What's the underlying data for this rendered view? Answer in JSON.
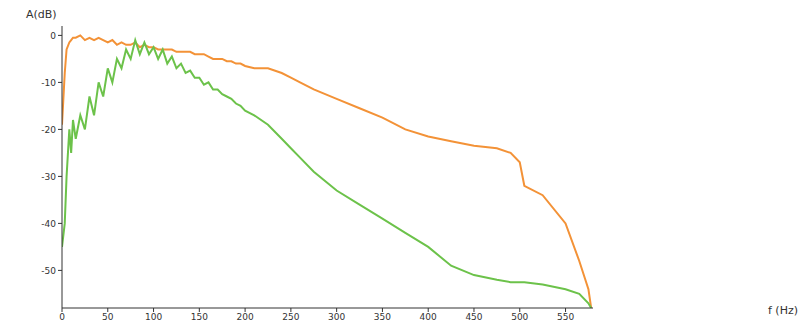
{
  "chart_data": {
    "type": "line",
    "x_label": "f (Hz)",
    "y_label": "A(dB)",
    "x": [
      0,
      3,
      5,
      8,
      10,
      12,
      15,
      20,
      25,
      30,
      35,
      40,
      45,
      50,
      55,
      60,
      65,
      70,
      75,
      80,
      85,
      90,
      95,
      100,
      105,
      110,
      115,
      120,
      125,
      130,
      135,
      140,
      145,
      150,
      155,
      160,
      165,
      170,
      175,
      180,
      185,
      190,
      195,
      200,
      210,
      225,
      240,
      250,
      260,
      275,
      300,
      325,
      350,
      375,
      400,
      425,
      450,
      475,
      490,
      500,
      505,
      525,
      550,
      565,
      575,
      578
    ],
    "series": [
      {
        "color": "#f39237",
        "values": [
          -19,
          -8,
          -3,
          -1.5,
          -1,
          -0.5,
          -0.5,
          0,
          -1,
          -0.5,
          -1,
          -0.5,
          -1,
          -1.5,
          -1,
          -2,
          -1.5,
          -2,
          -2,
          -1.5,
          -2.5,
          -2,
          -2.5,
          -2.5,
          -3,
          -3,
          -3,
          -3,
          -3.5,
          -3.5,
          -3.5,
          -3.5,
          -4,
          -4,
          -4,
          -4.5,
          -5,
          -5,
          -5,
          -5.5,
          -5.5,
          -6,
          -6,
          -6.5,
          -7,
          -7,
          -8,
          -9,
          -10,
          -11.5,
          -13.5,
          -15.5,
          -17.5,
          -20,
          -21.5,
          -22.5,
          -23.5,
          -24,
          -25,
          -27,
          -32,
          -34,
          -40,
          -48,
          -54,
          -58
        ]
      },
      {
        "color": "#6cc24a",
        "values": [
          -45,
          -40,
          -30,
          -20,
          -25,
          -18,
          -22,
          -17,
          -20,
          -13,
          -17,
          -10,
          -13,
          -7,
          -10,
          -5,
          -7,
          -3,
          -5,
          -1,
          -4,
          -1.5,
          -4,
          -2.5,
          -5,
          -3,
          -6,
          -4.5,
          -7,
          -6,
          -8,
          -7.5,
          -9,
          -9,
          -10.5,
          -10,
          -11.5,
          -11.5,
          -12.5,
          -13,
          -13.5,
          -14.5,
          -15,
          -16,
          -17,
          -19,
          -22,
          -24,
          -26,
          -29,
          -33,
          -36,
          -39,
          -42,
          -45,
          -49,
          -51,
          -52,
          -52.5,
          -52.5,
          -52.5,
          -53,
          -54,
          -55,
          -57,
          -58
        ]
      }
    ],
    "xlim": [
      0,
      580
    ],
    "xticks": [
      0,
      50,
      100,
      150,
      200,
      250,
      300,
      350,
      400,
      450,
      500,
      550
    ],
    "ylim": [
      -58,
      2
    ],
    "yticks": [
      -50,
      -40,
      -30,
      -20,
      -10,
      0
    ],
    "grid": false
  }
}
